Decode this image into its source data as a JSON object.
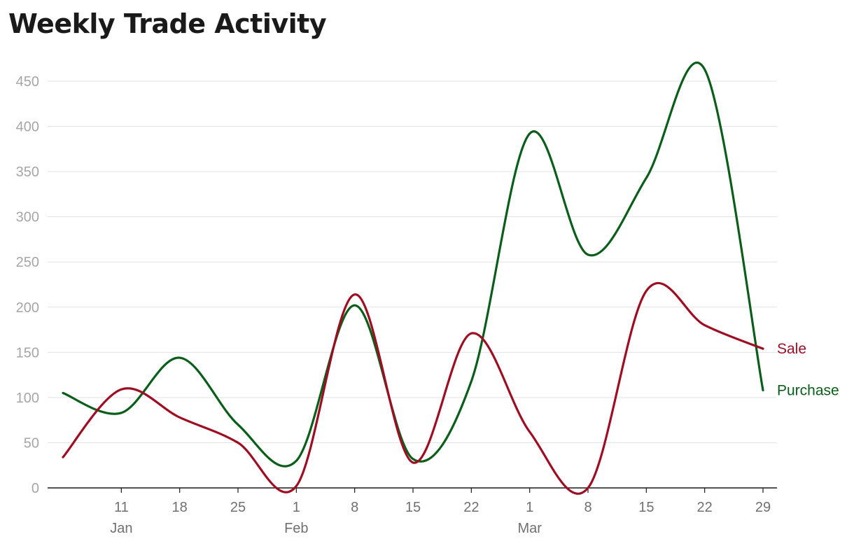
{
  "chart_data": {
    "type": "line",
    "title": "Weekly Trade Activity",
    "xlabel": "",
    "ylabel": "",
    "x": [
      "2026-01-04",
      "2026-01-11",
      "2026-01-18",
      "2026-01-25",
      "2026-02-01",
      "2026-02-08",
      "2026-02-15",
      "2026-02-22",
      "2026-03-01",
      "2026-03-08",
      "2026-03-15",
      "2026-03-22",
      "2026-03-29"
    ],
    "x_ticks": [
      {
        "date": "2026-01-11",
        "label": "11"
      },
      {
        "date": "2026-01-18",
        "label": "18"
      },
      {
        "date": "2026-01-25",
        "label": "25"
      },
      {
        "date": "2026-02-01",
        "label": "1"
      },
      {
        "date": "2026-02-08",
        "label": "8"
      },
      {
        "date": "2026-02-15",
        "label": "15"
      },
      {
        "date": "2026-02-22",
        "label": "22"
      },
      {
        "date": "2026-03-01",
        "label": "1"
      },
      {
        "date": "2026-03-08",
        "label": "8"
      },
      {
        "date": "2026-03-15",
        "label": "15"
      },
      {
        "date": "2026-03-22",
        "label": "22"
      },
      {
        "date": "2026-03-29",
        "label": "29"
      }
    ],
    "month_labels": [
      {
        "date": "2026-01-11",
        "label": "Jan"
      },
      {
        "date": "2026-02-01",
        "label": "Feb"
      },
      {
        "date": "2026-03-01",
        "label": "Mar"
      }
    ],
    "y_ticks": [
      0,
      50,
      100,
      150,
      200,
      250,
      300,
      350,
      400,
      450
    ],
    "ylim": [
      0,
      450
    ],
    "grid": true,
    "legend": "inline labels at line ends",
    "series": [
      {
        "name": "Sale",
        "color": "#9e0e23",
        "values": [
          34,
          109,
          78,
          50,
          2,
          214,
          28,
          171,
          62,
          0,
          218,
          180,
          154
        ]
      },
      {
        "name": "Purchase",
        "color": "#0b5e1a",
        "values": [
          105,
          83,
          144,
          70,
          30,
          202,
          32,
          118,
          392,
          258,
          343,
          463,
          108
        ]
      }
    ]
  }
}
